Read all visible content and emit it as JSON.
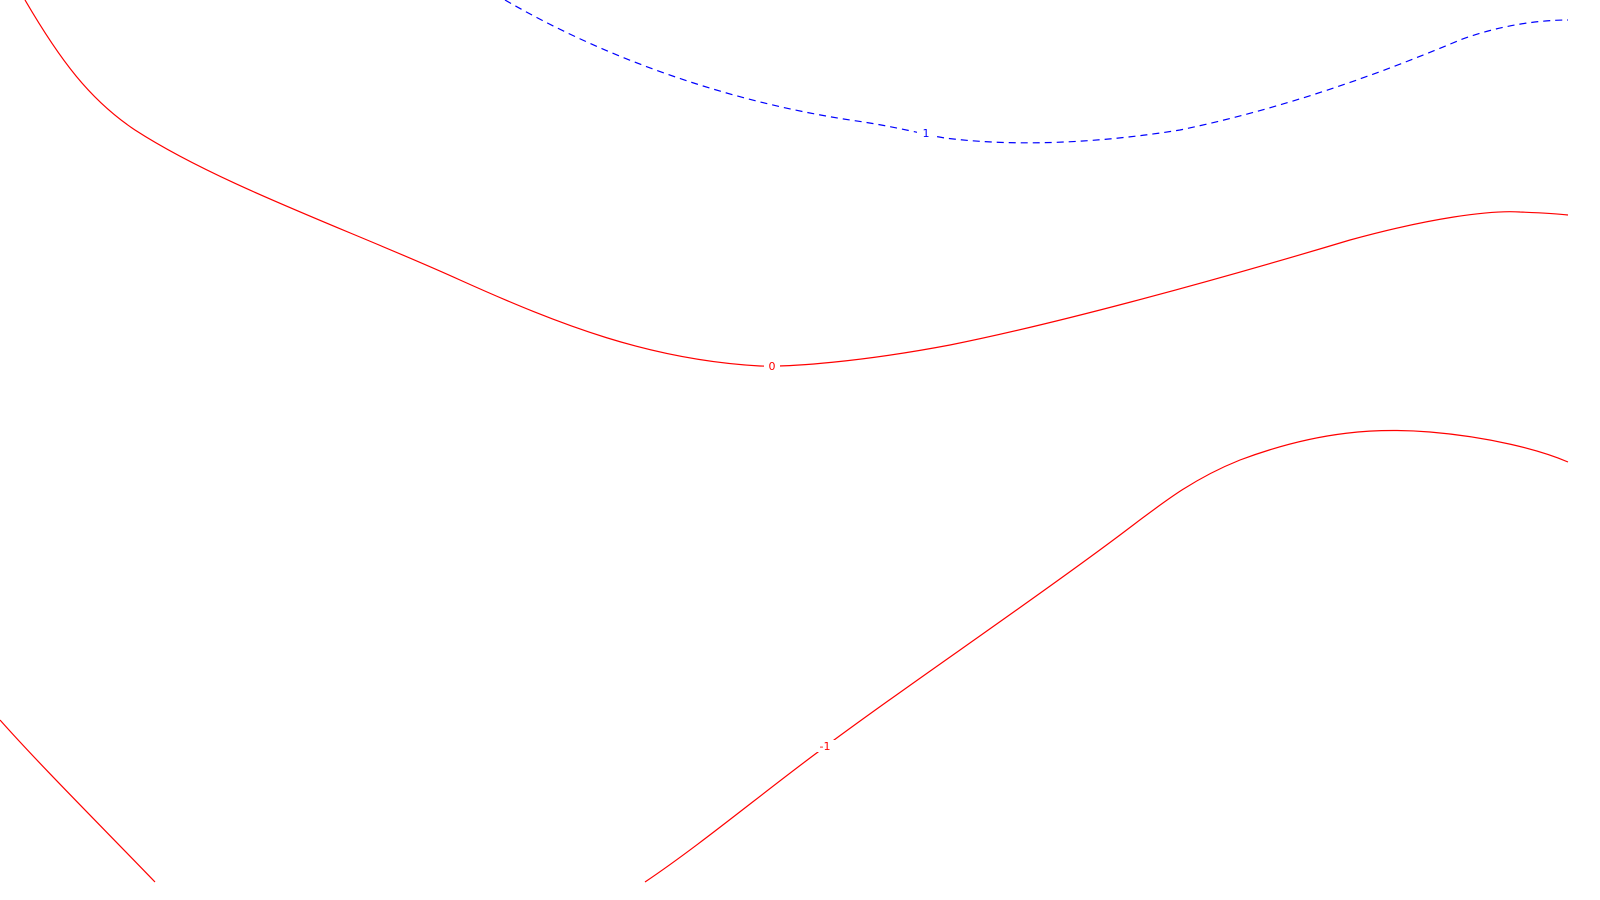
{
  "map": {
    "background_color": "#ffffff",
    "positive_color": "#0000ff",
    "negative_color": "#ff0000",
    "contours": [
      {
        "value": 1,
        "label": "1",
        "color": "#0000ff",
        "style": "dashed"
      },
      {
        "value": 0,
        "label": "0",
        "color": "#ff0000",
        "style": "solid"
      },
      {
        "value": -1,
        "label": "-1",
        "color": "#ff0000",
        "style": "solid"
      }
    ]
  }
}
